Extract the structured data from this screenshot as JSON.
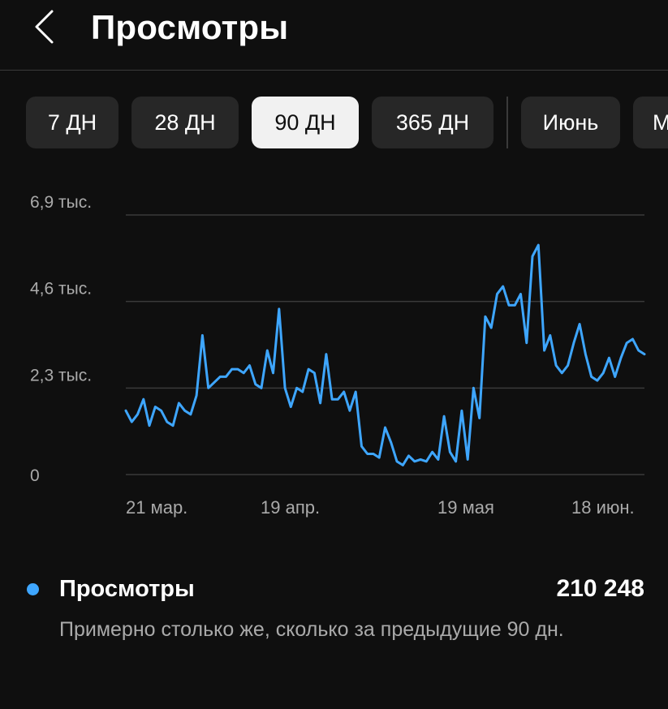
{
  "header": {
    "title": "Просмотры",
    "back_icon": "chevron-left-icon"
  },
  "periods": [
    {
      "label": "7 ДН",
      "selected": false
    },
    {
      "label": "28 ДН",
      "selected": false
    },
    {
      "label": "90 ДН",
      "selected": true
    },
    {
      "label": "365 ДН",
      "selected": false
    },
    {
      "label": "Июнь",
      "selected": false
    },
    {
      "label": "М",
      "selected": false
    }
  ],
  "chart_data": {
    "type": "line",
    "y_ticks": [
      "6,9 тыс.",
      "4,6 тыс.",
      "2,3 тыс.",
      "0"
    ],
    "ylim": [
      0,
      6900
    ],
    "x_ticks": [
      "21 мар.",
      "19 апр.",
      "19 мая",
      "18 июн."
    ],
    "grid": true,
    "color": "#3ea6ff",
    "series": [
      {
        "name": "Просмотры",
        "values": [
          1700,
          1400,
          1600,
          2000,
          1300,
          1800,
          1700,
          1400,
          1300,
          1900,
          1700,
          1600,
          2100,
          3700,
          2300,
          2450,
          2600,
          2600,
          2800,
          2800,
          2700,
          2900,
          2400,
          2300,
          3300,
          2700,
          4400,
          2300,
          1800,
          2300,
          2200,
          2800,
          2700,
          1900,
          3200,
          2000,
          2000,
          2200,
          1700,
          2200,
          750,
          550,
          550,
          450,
          1250,
          850,
          350,
          250,
          500,
          350,
          400,
          350,
          600,
          400,
          1550,
          600,
          350,
          1700,
          400,
          2300,
          1500,
          4200,
          3900,
          4800,
          5000,
          4500,
          4500,
          4800,
          3500,
          5800,
          6100,
          3300,
          3700,
          2900,
          2700,
          2900,
          3500,
          4000,
          3200,
          2600,
          2500,
          2700,
          3100,
          2600,
          3100,
          3500,
          3600,
          3300,
          3200
        ]
      }
    ]
  },
  "summary": {
    "metric": "Просмотры",
    "total": "210 248",
    "note": "Примерно столько же, сколько за предыдущие 90 дн."
  }
}
